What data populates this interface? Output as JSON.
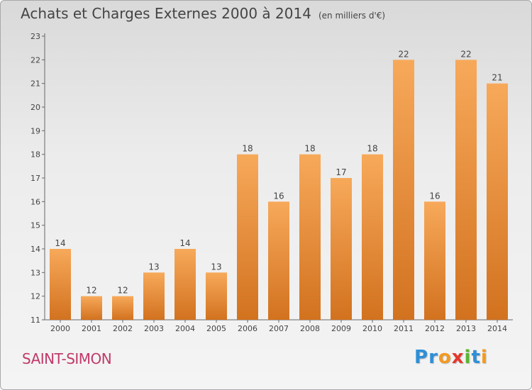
{
  "chart_data": {
    "type": "bar",
    "title": "Achats et Charges Externes 2000 à 2014",
    "unit_label": "(en milliers d'€)",
    "categories": [
      "2000",
      "2001",
      "2002",
      "2003",
      "2004",
      "2005",
      "2006",
      "2007",
      "2008",
      "2009",
      "2010",
      "2011",
      "2012",
      "2013",
      "2014"
    ],
    "values": [
      14,
      12,
      12,
      13,
      14,
      13,
      18,
      16,
      18,
      17,
      18,
      22,
      16,
      22,
      21
    ],
    "ylim": [
      11,
      23
    ],
    "yticks": [
      11,
      12,
      13,
      14,
      15,
      16,
      17,
      18,
      19,
      20,
      21,
      22,
      23
    ],
    "grid": false,
    "bar_color_top": "#f7a95a",
    "bar_color_bottom": "#d2721f"
  },
  "footer": {
    "commune": "SAINT-SIMON",
    "logo_letters": [
      {
        "ch": "P",
        "color": "#2f8fd6"
      },
      {
        "ch": "r",
        "color": "#2f8fd6"
      },
      {
        "ch": "o",
        "color": "#f29a22"
      },
      {
        "ch": "x",
        "color": "#e5372c"
      },
      {
        "ch": "i",
        "color": "#5bb533"
      },
      {
        "ch": "t",
        "color": "#2f8fd6"
      },
      {
        "ch": "i",
        "color": "#f29a22"
      }
    ]
  }
}
